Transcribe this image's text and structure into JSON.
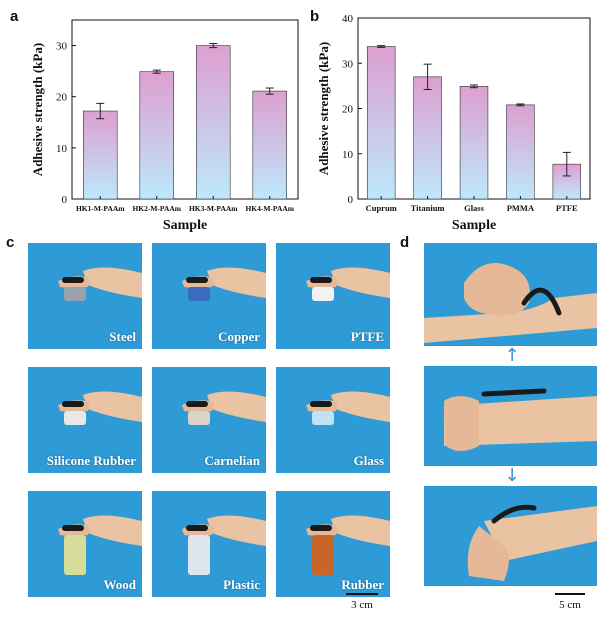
{
  "panels": {
    "a": "a",
    "b": "b",
    "c": "c",
    "d": "d"
  },
  "chart_data": [
    {
      "type": "bar",
      "panel": "a",
      "categories": [
        "HK1-M-PAAm",
        "HK2-M-PAAm",
        "HK3-M-PAAm",
        "HK4-M-PAAm"
      ],
      "values": [
        17.2,
        24.9,
        30.0,
        21.1
      ],
      "errors": [
        1.5,
        0.3,
        0.4,
        0.6
      ],
      "title": "",
      "xlabel": "Sample",
      "ylabel": "Adhesive strength (kPa)",
      "ylim": [
        0,
        35
      ],
      "yticks": [
        0,
        10,
        20,
        30
      ],
      "grid": false,
      "bar_gradient": [
        "#e2a8d6",
        "#bfe6fa"
      ]
    },
    {
      "type": "bar",
      "panel": "b",
      "categories": [
        "Cuprum",
        "Titanium",
        "Glass",
        "PMMA",
        "PTFE"
      ],
      "values": [
        33.7,
        27.0,
        24.9,
        20.8,
        7.7
      ],
      "errors": [
        0.2,
        2.8,
        0.3,
        0.2,
        2.6
      ],
      "title": "",
      "xlabel": "Sample",
      "ylabel": "Adhesive strength (kPa)",
      "ylim": [
        0,
        40
      ],
      "yticks": [
        0,
        10,
        20,
        30,
        40
      ],
      "grid": false,
      "bar_gradient": [
        "#e2a8d6",
        "#bfe6fa"
      ]
    }
  ],
  "photos_c": {
    "tiles": [
      "Steel",
      "Copper",
      "PTFE",
      "Silicone Rubber",
      "Carnelian",
      "Glass",
      "Wood",
      "Plastic",
      "Rubber"
    ],
    "scale_bar": "3 cm"
  },
  "photos_d": {
    "arrow_up": "↑",
    "arrow_down": "↓",
    "scale_bar": "5 cm"
  },
  "colors": {
    "photo_background": "#2e9bd6",
    "skin": "#e9c3a2",
    "hydrogel": "#1a1a1a"
  }
}
